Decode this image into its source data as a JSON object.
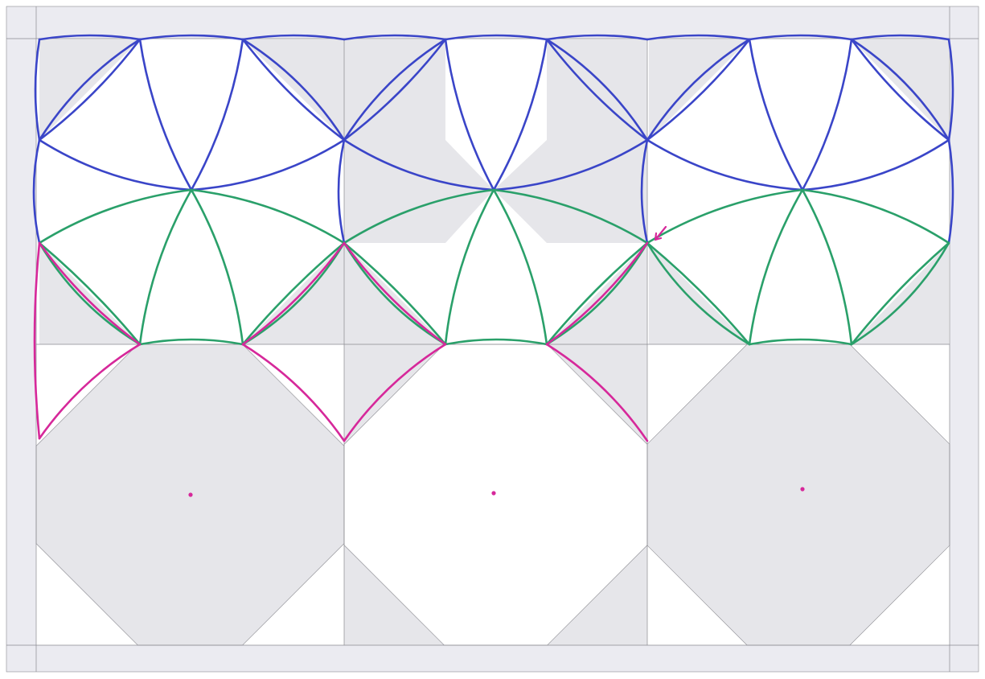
{
  "diagram": {
    "kind": "quilt-quilting-stitch-plan",
    "colors": {
      "paper": "#ffffff",
      "border_fabric": "#ebebf1",
      "shaded_fabric": "#e6e6ea",
      "light_fabric": "#ffffff",
      "seam_line": "#8a8a90",
      "stitch_row_1": "#3a45c8",
      "stitch_row_2": "#2aa06a",
      "stitch_row_3": "#d6289a"
    },
    "grid": {
      "columns": 3,
      "rows": 2,
      "block_type": "octagon-snowball"
    },
    "stitching": {
      "row_1_color_name": "blue",
      "row_2_color_name": "green",
      "row_3_color_name": "magenta",
      "start_marker": "arrow",
      "center_dots": 3
    }
  }
}
